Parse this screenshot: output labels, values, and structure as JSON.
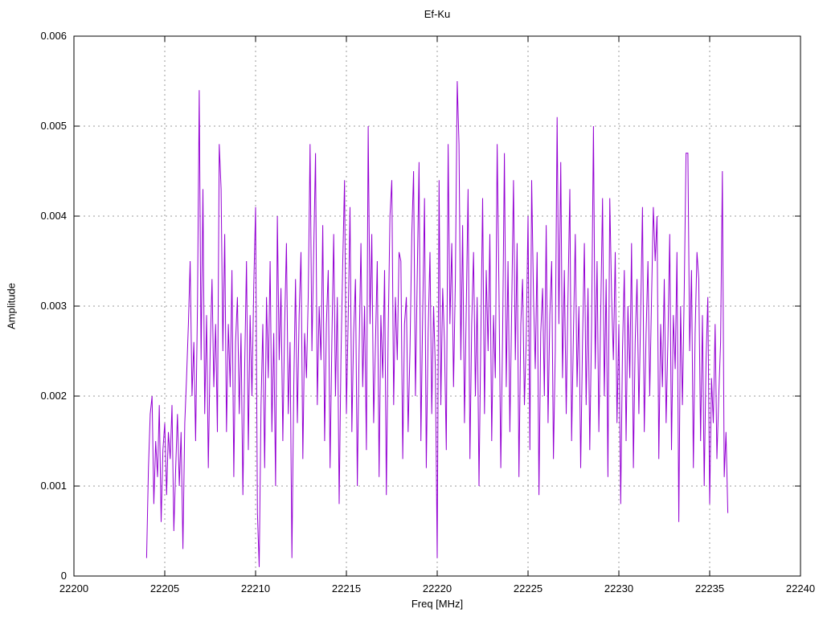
{
  "window": {
    "background": "#ffffff"
  },
  "chart_data": {
    "type": "line",
    "title": "Ef-Ku",
    "xlabel": "Freq [MHz]",
    "ylabel": "Amplitude",
    "xlim": [
      22200,
      22240
    ],
    "ylim": [
      0,
      0.006
    ],
    "x_tick_values": [
      22200,
      22205,
      22210,
      22215,
      22220,
      22225,
      22230,
      22235,
      22240
    ],
    "x_tick_labels": [
      "22200",
      "22205",
      "22210",
      "22215",
      "22220",
      "22225",
      "22230",
      "22235",
      "22240"
    ],
    "y_tick_values": [
      0,
      0.001,
      0.002,
      0.003,
      0.004,
      0.005,
      0.006
    ],
    "y_tick_labels": [
      "0",
      "0.001",
      "0.002",
      "0.003",
      "0.004",
      "0.005",
      "0.006"
    ],
    "grid": "dotted",
    "grid_color": "#9b9b9b",
    "border_color": "#000000",
    "line_color": "#9400d3",
    "legend_position": "none",
    "series": [
      {
        "name": "Ef-Ku",
        "x_start": 22204.0,
        "x_step": 0.1,
        "y_scale": 0.0001,
        "y": [
          2,
          12,
          18,
          20,
          8,
          15,
          11,
          19,
          6,
          14,
          17,
          9,
          16,
          13,
          19,
          5,
          12,
          18,
          10,
          16,
          3,
          17,
          22,
          28,
          35,
          20,
          26,
          15,
          30,
          54,
          24,
          43,
          18,
          29,
          12,
          25,
          33,
          21,
          28,
          16,
          48,
          43,
          25,
          38,
          16,
          28,
          21,
          34,
          11,
          26,
          31,
          18,
          27,
          9,
          23,
          35,
          14,
          29,
          20,
          32,
          41,
          7,
          1,
          19,
          28,
          12,
          31,
          22,
          35,
          16,
          27,
          10,
          40,
          24,
          32,
          15,
          28,
          37,
          18,
          26,
          2,
          21,
          33,
          17,
          29,
          36,
          13,
          27,
          22,
          31,
          48,
          25,
          36,
          47,
          19,
          30,
          24,
          39,
          15,
          28,
          34,
          12,
          26,
          38,
          20,
          31,
          8,
          24,
          35,
          44,
          18,
          29,
          41,
          16,
          27,
          33,
          10,
          25,
          37,
          21,
          30,
          14,
          50,
          28,
          38,
          17,
          26,
          35,
          11,
          29,
          22,
          34,
          9,
          27,
          40,
          44,
          19,
          31,
          24,
          36,
          35,
          13,
          28,
          31,
          16,
          25,
          38,
          45,
          20,
          33,
          46,
          15,
          29,
          42,
          12,
          27,
          36,
          18,
          30,
          23,
          2,
          44,
          19,
          32,
          26,
          14,
          48,
          28,
          37,
          21,
          33,
          55,
          48,
          24,
          39,
          17,
          30,
          43,
          13,
          28,
          36,
          20,
          31,
          10,
          26,
          42,
          18,
          34,
          25,
          38,
          15,
          29,
          22,
          48,
          32,
          12,
          27,
          47,
          21,
          35,
          16,
          30,
          44,
          24,
          37,
          11,
          28,
          33,
          19,
          26,
          40,
          14,
          44,
          31,
          23,
          36,
          9,
          27,
          32,
          20,
          39,
          17,
          29,
          35,
          13,
          25,
          51,
          28,
          46,
          22,
          34,
          18,
          31,
          43,
          15,
          27,
          38,
          21,
          30,
          12,
          26,
          37,
          19,
          32,
          14,
          28,
          50,
          23,
          35,
          16,
          29,
          42,
          20,
          33,
          11,
          42,
          31,
          24,
          36,
          17,
          28,
          8,
          25,
          34,
          15,
          30,
          22,
          37,
          12,
          26,
          33,
          18,
          29,
          41,
          16,
          27,
          35,
          20,
          31,
          41,
          35,
          40,
          13,
          28,
          21,
          33,
          17,
          26,
          38,
          14,
          29,
          23,
          36,
          6,
          30,
          19,
          32,
          47,
          47,
          25,
          34,
          12,
          27,
          36,
          33,
          15,
          29,
          10,
          24,
          31,
          8,
          22,
          17,
          28,
          13,
          20,
          26,
          45,
          11,
          16,
          7
        ]
      }
    ]
  }
}
